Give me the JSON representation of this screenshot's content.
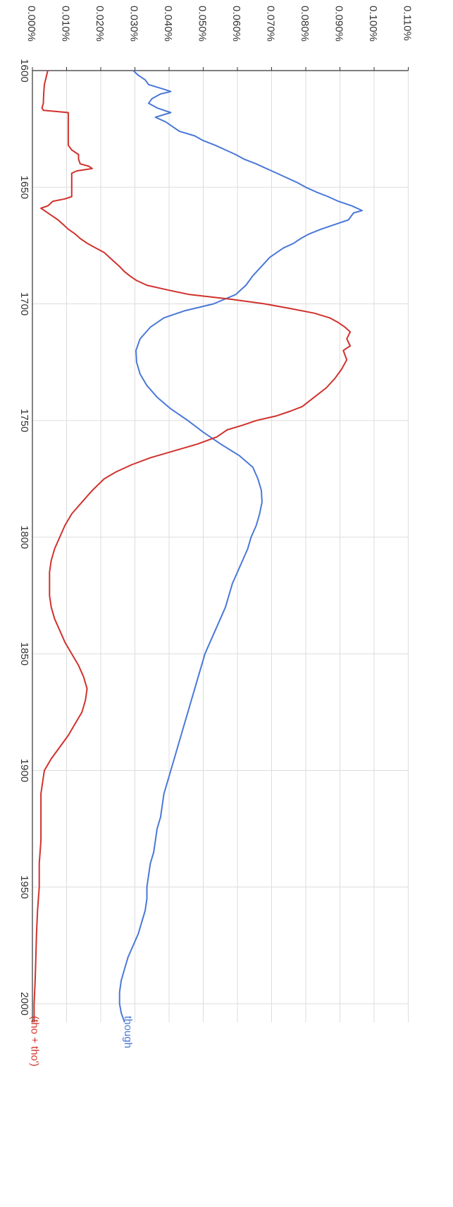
{
  "chart_data": {
    "type": "line",
    "title": "",
    "xlabel": "",
    "ylabel": "",
    "xlim": [
      1600,
      2008
    ],
    "ylim": [
      0,
      0.11
    ],
    "x_ticks": [
      "1600",
      "1650",
      "1700",
      "1750",
      "1800",
      "1850",
      "1900",
      "1950",
      "2000"
    ],
    "x_tick_values": [
      1600,
      1650,
      1700,
      1750,
      1800,
      1850,
      1900,
      1950,
      2000
    ],
    "y_ticks": [
      "0.000%",
      "0.010%",
      "0.020%",
      "0.030%",
      "0.040%",
      "0.050%",
      "0.060%",
      "0.070%",
      "0.080%",
      "0.090%",
      "0.100%",
      "0.110%"
    ],
    "y_tick_values": [
      0,
      0.01,
      0.02,
      0.03,
      0.04,
      0.05,
      0.06,
      0.07,
      0.08,
      0.09,
      0.1,
      0.11
    ],
    "grid": true,
    "series": [
      {
        "name": "though",
        "color": "#4a78d8",
        "points": [
          [
            1600,
            0.0295
          ],
          [
            1602,
            0.031
          ],
          [
            1604,
            0.033
          ],
          [
            1606,
            0.034
          ],
          [
            1608,
            0.0385
          ],
          [
            1609,
            0.0405
          ],
          [
            1610,
            0.0375
          ],
          [
            1612,
            0.035
          ],
          [
            1614,
            0.034
          ],
          [
            1616,
            0.0365
          ],
          [
            1618,
            0.0405
          ],
          [
            1620,
            0.036
          ],
          [
            1622,
            0.039
          ],
          [
            1624,
            0.041
          ],
          [
            1626,
            0.043
          ],
          [
            1628,
            0.0475
          ],
          [
            1630,
            0.05
          ],
          [
            1632,
            0.0535
          ],
          [
            1634,
            0.0565
          ],
          [
            1636,
            0.0595
          ],
          [
            1638,
            0.062
          ],
          [
            1640,
            0.0655
          ],
          [
            1642,
            0.0685
          ],
          [
            1644,
            0.0715
          ],
          [
            1646,
            0.0745
          ],
          [
            1648,
            0.0775
          ],
          [
            1650,
            0.08
          ],
          [
            1652,
            0.083
          ],
          [
            1654,
            0.0865
          ],
          [
            1656,
            0.0895
          ],
          [
            1658,
            0.0935
          ],
          [
            1660,
            0.0965
          ],
          [
            1661,
            0.094
          ],
          [
            1662,
            0.0935
          ],
          [
            1664,
            0.0925
          ],
          [
            1666,
            0.0885
          ],
          [
            1668,
            0.0845
          ],
          [
            1670,
            0.081
          ],
          [
            1672,
            0.0785
          ],
          [
            1674,
            0.0765
          ],
          [
            1676,
            0.0735
          ],
          [
            1678,
            0.0715
          ],
          [
            1680,
            0.0695
          ],
          [
            1684,
            0.067
          ],
          [
            1688,
            0.0645
          ],
          [
            1692,
            0.0625
          ],
          [
            1696,
            0.0595
          ],
          [
            1700,
            0.053
          ],
          [
            1703,
            0.0445
          ],
          [
            1706,
            0.0385
          ],
          [
            1710,
            0.0345
          ],
          [
            1715,
            0.0315
          ],
          [
            1720,
            0.0303
          ],
          [
            1725,
            0.0305
          ],
          [
            1730,
            0.0315
          ],
          [
            1735,
            0.0335
          ],
          [
            1740,
            0.0365
          ],
          [
            1745,
            0.0405
          ],
          [
            1750,
            0.0455
          ],
          [
            1755,
            0.05
          ],
          [
            1760,
            0.055
          ],
          [
            1765,
            0.0605
          ],
          [
            1770,
            0.0645
          ],
          [
            1775,
            0.066
          ],
          [
            1780,
            0.067
          ],
          [
            1785,
            0.0672
          ],
          [
            1790,
            0.0665
          ],
          [
            1795,
            0.0655
          ],
          [
            1800,
            0.064
          ],
          [
            1805,
            0.063
          ],
          [
            1810,
            0.0615
          ],
          [
            1815,
            0.06
          ],
          [
            1820,
            0.0585
          ],
          [
            1825,
            0.0575
          ],
          [
            1830,
            0.0565
          ],
          [
            1835,
            0.055
          ],
          [
            1840,
            0.0535
          ],
          [
            1845,
            0.052
          ],
          [
            1850,
            0.0505
          ],
          [
            1855,
            0.0495
          ],
          [
            1860,
            0.0485
          ],
          [
            1865,
            0.0475
          ],
          [
            1870,
            0.0465
          ],
          [
            1875,
            0.0455
          ],
          [
            1880,
            0.0445
          ],
          [
            1885,
            0.0435
          ],
          [
            1890,
            0.0425
          ],
          [
            1895,
            0.0415
          ],
          [
            1900,
            0.0405
          ],
          [
            1905,
            0.0395
          ],
          [
            1910,
            0.0385
          ],
          [
            1915,
            0.038
          ],
          [
            1920,
            0.0375
          ],
          [
            1925,
            0.0365
          ],
          [
            1930,
            0.036
          ],
          [
            1935,
            0.0355
          ],
          [
            1940,
            0.0345
          ],
          [
            1945,
            0.034
          ],
          [
            1950,
            0.0335
          ],
          [
            1955,
            0.0335
          ],
          [
            1960,
            0.033
          ],
          [
            1965,
            0.032
          ],
          [
            1970,
            0.031
          ],
          [
            1975,
            0.0295
          ],
          [
            1980,
            0.028
          ],
          [
            1985,
            0.027
          ],
          [
            1990,
            0.026
          ],
          [
            1995,
            0.0255
          ],
          [
            2000,
            0.0255
          ],
          [
            2004,
            0.026
          ],
          [
            2008,
            0.027
          ]
        ]
      },
      {
        "name": "(tho + tho')",
        "color": "#d0322d",
        "points": [
          [
            1600,
            0.0045
          ],
          [
            1603,
            0.004
          ],
          [
            1606,
            0.0035
          ],
          [
            1610,
            0.0033
          ],
          [
            1614,
            0.0032
          ],
          [
            1616,
            0.0028
          ],
          [
            1617,
            0.0032
          ],
          [
            1618,
            0.0105
          ],
          [
            1620,
            0.0105
          ],
          [
            1624,
            0.0105
          ],
          [
            1628,
            0.0105
          ],
          [
            1632,
            0.0105
          ],
          [
            1634,
            0.0115
          ],
          [
            1636,
            0.0135
          ],
          [
            1638,
            0.0135
          ],
          [
            1640,
            0.014
          ],
          [
            1641,
            0.0165
          ],
          [
            1642,
            0.0175
          ],
          [
            1643,
            0.013
          ],
          [
            1644,
            0.0115
          ],
          [
            1646,
            0.0115
          ],
          [
            1648,
            0.0115
          ],
          [
            1650,
            0.0115
          ],
          [
            1652,
            0.0115
          ],
          [
            1654,
            0.0115
          ],
          [
            1655,
            0.0095
          ],
          [
            1656,
            0.006
          ],
          [
            1658,
            0.0045
          ],
          [
            1659,
            0.0025
          ],
          [
            1660,
            0.0035
          ],
          [
            1662,
            0.0055
          ],
          [
            1664,
            0.0075
          ],
          [
            1666,
            0.009
          ],
          [
            1668,
            0.0105
          ],
          [
            1670,
            0.0125
          ],
          [
            1672,
            0.014
          ],
          [
            1674,
            0.016
          ],
          [
            1676,
            0.0185
          ],
          [
            1678,
            0.021
          ],
          [
            1680,
            0.0225
          ],
          [
            1682,
            0.024
          ],
          [
            1684,
            0.0255
          ],
          [
            1686,
            0.0268
          ],
          [
            1688,
            0.0285
          ],
          [
            1690,
            0.0305
          ],
          [
            1692,
            0.0335
          ],
          [
            1694,
            0.0395
          ],
          [
            1696,
            0.046
          ],
          [
            1698,
            0.058
          ],
          [
            1700,
            0.068
          ],
          [
            1702,
            0.0755
          ],
          [
            1704,
            0.0825
          ],
          [
            1706,
            0.087
          ],
          [
            1708,
            0.0895
          ],
          [
            1710,
            0.0915
          ],
          [
            1712,
            0.093
          ],
          [
            1715,
            0.092
          ],
          [
            1718,
            0.093
          ],
          [
            1720,
            0.091
          ],
          [
            1724,
            0.092
          ],
          [
            1728,
            0.0905
          ],
          [
            1732,
            0.0885
          ],
          [
            1736,
            0.086
          ],
          [
            1740,
            0.0825
          ],
          [
            1744,
            0.079
          ],
          [
            1746,
            0.0755
          ],
          [
            1748,
            0.0715
          ],
          [
            1750,
            0.0655
          ],
          [
            1752,
            0.0615
          ],
          [
            1754,
            0.057
          ],
          [
            1757,
            0.054
          ],
          [
            1760,
            0.0485
          ],
          [
            1763,
            0.0415
          ],
          [
            1766,
            0.0345
          ],
          [
            1769,
            0.029
          ],
          [
            1772,
            0.0245
          ],
          [
            1775,
            0.021
          ],
          [
            1780,
            0.0175
          ],
          [
            1785,
            0.0145
          ],
          [
            1790,
            0.0115
          ],
          [
            1795,
            0.0095
          ],
          [
            1800,
            0.008
          ],
          [
            1805,
            0.0065
          ],
          [
            1810,
            0.0055
          ],
          [
            1815,
            0.005
          ],
          [
            1820,
            0.005
          ],
          [
            1825,
            0.005
          ],
          [
            1830,
            0.0055
          ],
          [
            1835,
            0.0065
          ],
          [
            1840,
            0.008
          ],
          [
            1845,
            0.0095
          ],
          [
            1850,
            0.0115
          ],
          [
            1855,
            0.0135
          ],
          [
            1860,
            0.015
          ],
          [
            1865,
            0.016
          ],
          [
            1870,
            0.0155
          ],
          [
            1875,
            0.0145
          ],
          [
            1880,
            0.0125
          ],
          [
            1885,
            0.0105
          ],
          [
            1890,
            0.008
          ],
          [
            1895,
            0.0055
          ],
          [
            1900,
            0.0035
          ],
          [
            1905,
            0.003
          ],
          [
            1910,
            0.0025
          ],
          [
            1920,
            0.0025
          ],
          [
            1930,
            0.0025
          ],
          [
            1940,
            0.002
          ],
          [
            1950,
            0.002
          ],
          [
            1960,
            0.0015
          ],
          [
            1970,
            0.0012
          ],
          [
            1980,
            0.001
          ],
          [
            1990,
            0.0008
          ],
          [
            2000,
            0.0005
          ],
          [
            2008,
            0.0005
          ]
        ]
      }
    ]
  }
}
